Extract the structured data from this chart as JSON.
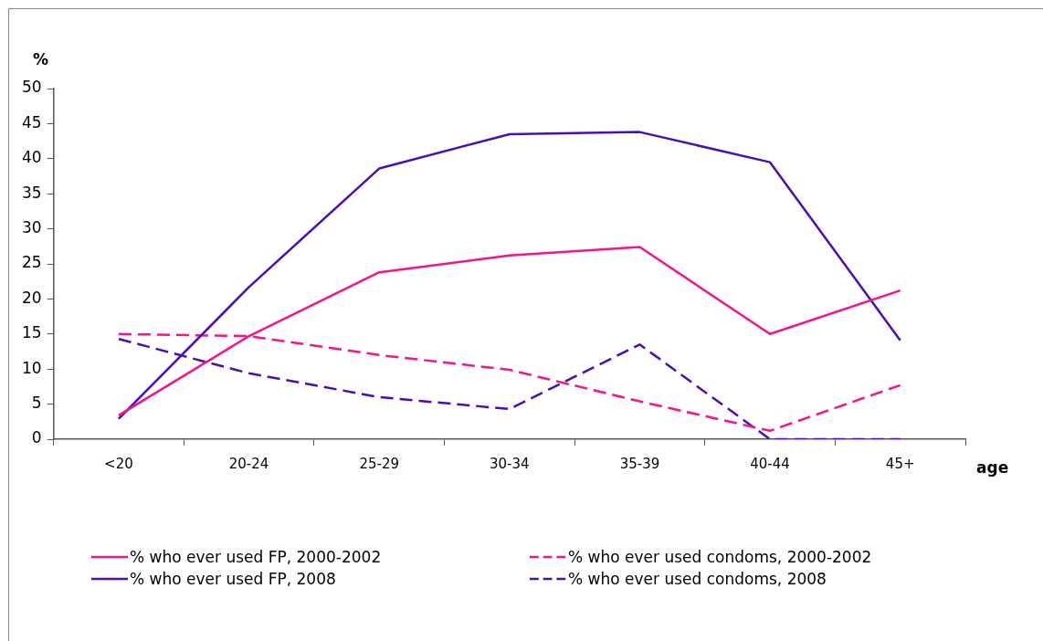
{
  "chart_data": {
    "type": "line",
    "xlabel": "age",
    "ylabel": "%",
    "categories": [
      "<20",
      "20-24",
      "25-29",
      "30-34",
      "35-39",
      "40-44",
      "45+"
    ],
    "series": [
      {
        "name": "% who ever used FP, 2000-2002",
        "color": "#f5148c",
        "line_style": "solid",
        "values": [
          3.4,
          14.7,
          23.8,
          26.2,
          27.4,
          15.0,
          21.2
        ]
      },
      {
        "name": "% who ever used FP, 2008",
        "color": "#4a0fb4",
        "line_style": "solid",
        "values": [
          2.9,
          21.7,
          38.6,
          43.5,
          43.8,
          39.5,
          14.1
        ]
      },
      {
        "name": "% who ever used condoms, 2000-2002",
        "color": "#f5148c",
        "line_style": "dashed",
        "values": [
          15.0,
          14.7,
          12.0,
          9.9,
          5.4,
          1.2,
          7.7
        ]
      },
      {
        "name": "% who ever used condoms, 2008",
        "color": "#4a0fb4",
        "line_style": "dashed",
        "values": [
          14.3,
          9.4,
          6.0,
          4.3,
          13.5,
          0,
          0
        ]
      }
    ],
    "ylim": [
      0,
      50
    ],
    "yticks": [
      0,
      5,
      10,
      15,
      20,
      25,
      30,
      35,
      40,
      45,
      50
    ],
    "grid": false,
    "legend": "bottom",
    "marker": "none"
  }
}
